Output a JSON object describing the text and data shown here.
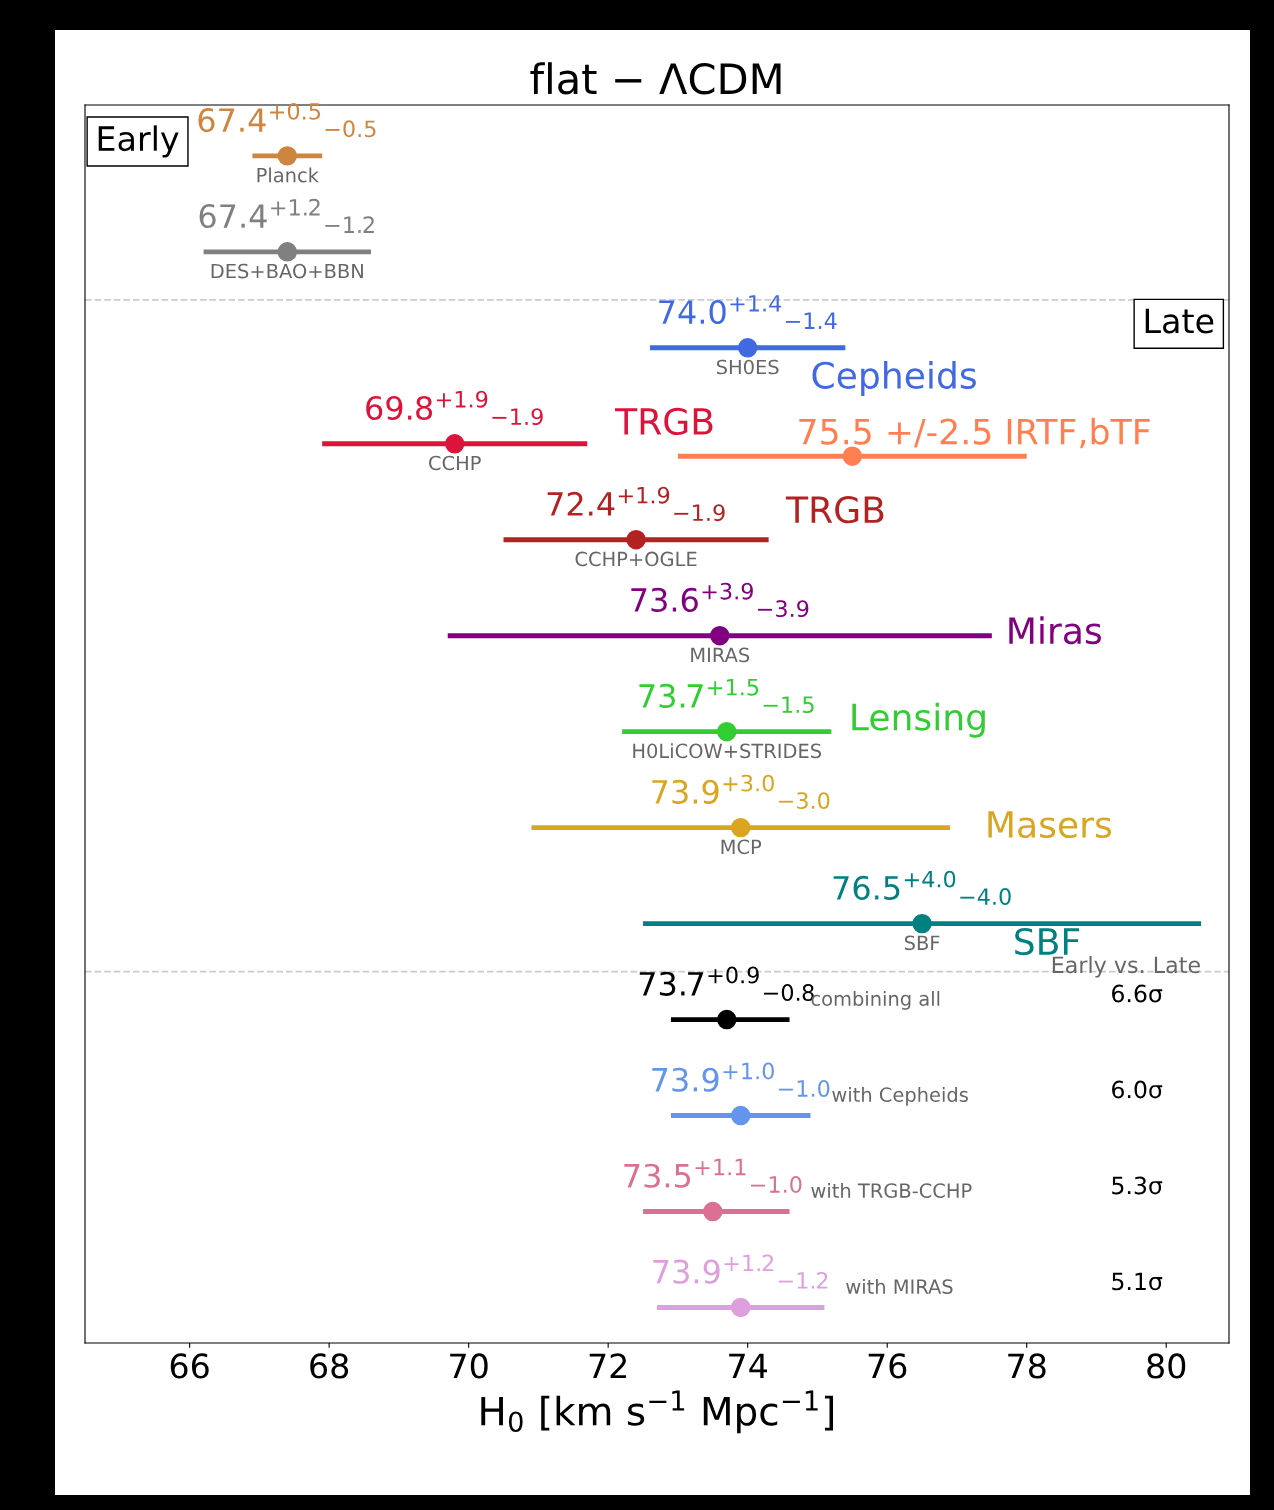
{
  "chart_data": {
    "type": "scatter",
    "orientation": "horizontal",
    "title": "flat − ΛCDM",
    "xlabel": "H$_{0}$ [km s$^{−1}$ Mpc$^{−1}$]",
    "categories": [
      "Planck",
      "DES+BAO+BBN",
      "SH0ES",
      "CCHP",
      "CCHP+OGLE",
      "MIRAS",
      "H0LiCOW+STRIDES",
      "MCP",
      "SBF",
      "combining all",
      "with Cepheids",
      "with TRGB-CCHP",
      "with MIRAS"
    ],
    "xlim": [
      64.5,
      80.9
    ],
    "xticks": [
      66,
      68,
      70,
      72,
      74,
      76,
      78,
      80
    ],
    "tick_labels": "x",
    "grid": false,
    "marker": "circle",
    "series": [
      {
        "colors": [
          "#cd853f",
          "#808080",
          "#4169e1",
          "#dc143c",
          "#b22222",
          "#800080",
          "#32cd32",
          "#daa520",
          "#008080",
          "#000000",
          "#6495ed",
          "#db7093",
          "#dda0dd"
        ],
        "values": [
          67.4,
          67.4,
          74.0,
          69.8,
          72.4,
          73.6,
          73.7,
          73.9,
          76.5,
          73.7,
          73.9,
          73.5,
          73.9
        ],
        "errors": [
          0.5,
          1.2,
          1.4,
          1.9,
          1.9,
          3.9,
          1.5,
          3.0,
          4.0,
          [
            72.9,
            74.6
          ],
          1.0,
          [
            72.5,
            74.6
          ],
          1.2
        ],
        "value_labels": [
          "67.4$^{+0.5}$$_{−0.5}$",
          "67.4$^{+1.2}$$_{−1.2}$",
          "74.0$^{+1.4}$$_{−1.4}$",
          "69.8$^{+1.9}$$_{−1.9}$",
          "72.4$^{+1.9}$$_{−1.9}$",
          "73.6$^{+3.9}$$_{−3.9}$",
          "73.7$^{+1.5}$$_{−1.5}$",
          "73.9$^{+3.0}$$_{−3.0}$",
          "76.5$^{+4.0}$$_{−4.0}$",
          "73.7$^{+0.9}$$_{−0.8}$",
          "73.9$^{+1.0}$$_{−1.0}$",
          "73.5$^{+1.1}$$_{−1.0}$",
          "73.9$^{+1.2}$$_{−1.2}$"
        ]
      },
      {
        "color": "#ff7f50",
        "values": [
          null,
          null,
          null,
          75.5,
          null,
          null,
          null,
          null,
          null,
          null,
          null,
          null,
          null
        ],
        "errors": [
          null,
          null,
          null,
          2.5,
          null,
          null,
          null,
          null,
          null,
          null,
          null,
          null,
          null
        ],
        "value_labels": [
          null,
          null,
          null,
          "75.5 +/-2.5 IRTF,bTF",
          null,
          null,
          null,
          null,
          null,
          null,
          null,
          null,
          null
        ]
      }
    ],
    "annotations": [
      "Early",
      "Late",
      "Early vs. Late",
      "6.6σ",
      "6.0σ",
      "5.3σ",
      "5.1σ",
      "Cepheids",
      "TRGB",
      "TRGB",
      "Miras",
      "Lensing",
      "Masers",
      "SBF"
    ]
  }
}
